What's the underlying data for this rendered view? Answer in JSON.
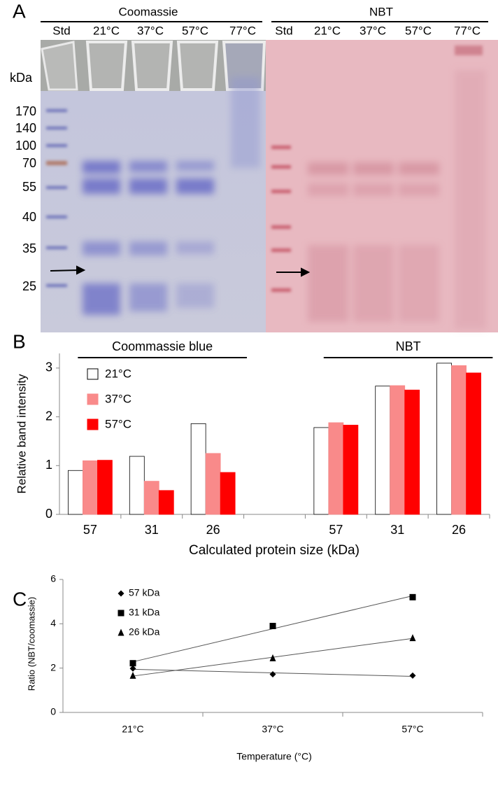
{
  "panel_a": {
    "label": "A",
    "headers": [
      "Coomassie",
      "NBT"
    ],
    "lanes": [
      [
        "Std",
        "21°C",
        "37°C",
        "57°C",
        "77°C"
      ],
      [
        "Std",
        "21°C",
        "37°C",
        "57°C",
        "77°C"
      ]
    ],
    "unit": "kDa",
    "markers": [
      "170",
      "140",
      "100",
      "70",
      "55",
      "40",
      "35",
      "25"
    ]
  },
  "chart_data": [
    {
      "type": "bar",
      "panel_label": "B",
      "group_labels": [
        "Coommassie blue",
        "NBT"
      ],
      "x_label": "Calculated protein size (kDa)",
      "y_label": "Relative band intensity",
      "categories": [
        "57",
        "31",
        "26",
        null,
        "57",
        "31",
        "26"
      ],
      "series": [
        {
          "name": "21°C",
          "color": "#ffffff",
          "values": [
            0.9,
            1.19,
            1.86,
            null,
            1.78,
            2.63,
            3.1
          ]
        },
        {
          "name": "37°C",
          "color": "#f98a8a",
          "values": [
            1.1,
            0.68,
            1.25,
            null,
            1.88,
            2.64,
            3.05
          ]
        },
        {
          "name": "57°C",
          "color": "#ff0000",
          "values": [
            1.11,
            0.49,
            0.86,
            null,
            1.83,
            2.55,
            2.9
          ]
        }
      ],
      "ylim": [
        0,
        3.3
      ],
      "yticks": [
        0,
        1,
        2,
        3
      ]
    },
    {
      "type": "scatter",
      "panel_label": "C",
      "x_label": "Temperature (°C)",
      "y_label": "Ratio (NBT/coomassie)",
      "categories": [
        "21°C",
        "37°C",
        "57°C"
      ],
      "trendline": true,
      "series": [
        {
          "name": "57 kDa",
          "color": "#000000",
          "marker": "diamond",
          "values": [
            1.98,
            1.72,
            1.66
          ]
        },
        {
          "name": "31 kDa",
          "color": "#000000",
          "marker": "square",
          "values": [
            2.22,
            3.9,
            5.2
          ]
        },
        {
          "name": "26 kDa",
          "color": "#000000",
          "marker": "triangle",
          "values": [
            1.66,
            2.45,
            3.36
          ]
        }
      ],
      "ylim": [
        0,
        6
      ],
      "yticks": [
        0,
        2,
        4,
        6
      ]
    }
  ]
}
